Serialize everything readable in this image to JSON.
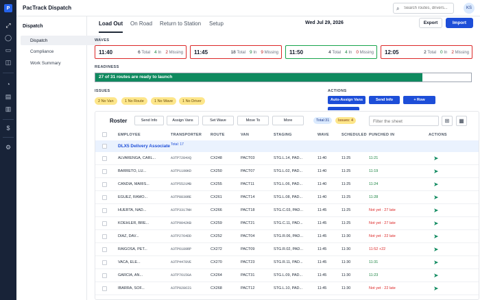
{
  "app": {
    "title": "PacTrack Dispatch"
  },
  "search": {
    "placeholder": "Search routes, drivers..."
  },
  "user": {
    "initials": "KS"
  },
  "rail": {
    "logo": "P",
    "icons": [
      "route-icon",
      "chat-icon",
      "truck-icon",
      "package-icon",
      "gauge-icon",
      "document-icon",
      "clipboard-icon",
      "dollar-icon",
      "settings-icon"
    ]
  },
  "sidebar": {
    "title": "Dispatch",
    "items": [
      {
        "label": "Dispatch"
      },
      {
        "label": "Compliance"
      },
      {
        "label": "Work Summary"
      }
    ]
  },
  "tabs": [
    {
      "label": "Load Out"
    },
    {
      "label": "On Road"
    },
    {
      "label": "Return to Station"
    },
    {
      "label": "Setup"
    }
  ],
  "date": "Wed Jul 29, 2026",
  "actions_top": {
    "export": "Export",
    "import": "Import"
  },
  "waves": {
    "label": "WAVES",
    "items": [
      {
        "time": "11:40",
        "total": "6",
        "in": "4",
        "missing": "2",
        "status": "missing"
      },
      {
        "time": "11:45",
        "total": "18",
        "in": "9",
        "missing": "9",
        "status": "missing"
      },
      {
        "time": "11:50",
        "total": "4",
        "in": "4",
        "missing": "0",
        "status": "ok"
      },
      {
        "time": "12:05",
        "total": "2",
        "in": "0",
        "missing": "2",
        "status": "missing"
      }
    ],
    "total_label": "Total",
    "in_label": "In",
    "missing_label": "Missing"
  },
  "readiness": {
    "label": "READINESS",
    "text": "27 of 31 routes are ready to launch",
    "ready": 27,
    "total": 31
  },
  "issues": {
    "label": "ISSUES",
    "chips": [
      "2 No Van",
      "1 No Route",
      "1 No Wave",
      "1 No Driver"
    ]
  },
  "actions": {
    "label": "ACTIONS",
    "buttons": [
      "Auto-Assign Vans",
      "Send Info",
      "+ Row"
    ]
  },
  "roster": {
    "title": "Roster",
    "buttons": [
      "Send Info",
      "Assign Vans",
      "Set Wave",
      "Move To",
      "More"
    ],
    "total_pill": "Total:31",
    "issues_pill": "Issues: 4",
    "filter_placeholder": "Filter the sheet",
    "columns": [
      "EMPLOYEE",
      "TRANSPORTER",
      "ROUTE",
      "VAN",
      "STAGING",
      "WAVE",
      "SCHEDULED",
      "PUNCHED IN",
      "ACTIONS"
    ],
    "group": {
      "name": "DLX5 Delivery Associate",
      "total": "Total: 17"
    },
    "rows": [
      {
        "employee": "ALVARENGA, CARL...",
        "transporter": "A3TP7284XQ",
        "route": "CX248",
        "van": "PACT03",
        "staging": "STG.L.14, PAD...",
        "wave": "11:40",
        "scheduled": "11:25",
        "punched": "11:21",
        "punch_status": "ok"
      },
      {
        "employee": "BARRETO, LU...",
        "transporter": "A3TP1190KD",
        "route": "CX250",
        "van": "PACT07",
        "staging": "STG.L.02, PAD...",
        "wave": "11:40",
        "scheduled": "11:25",
        "punched": "11:19",
        "punch_status": "ok"
      },
      {
        "employee": "CANDIA, MARIS...",
        "transporter": "A3TP5521MB",
        "route": "CX255",
        "van": "PACT11",
        "staging": "STG.L.06, PAD...",
        "wave": "11:40",
        "scheduled": "11:25",
        "punched": "11:24",
        "punch_status": "ok"
      },
      {
        "employee": "EGUEZ, RAMO...",
        "transporter": "A3TP8830RE",
        "route": "CX261",
        "van": "PACT14",
        "staging": "STG.L.08, PAD...",
        "wave": "11:40",
        "scheduled": "11:25",
        "punched": "11:28",
        "punch_status": "ok"
      },
      {
        "employee": "HUERTA, NAD...",
        "transporter": "A3TP3317NH",
        "route": "CX266",
        "van": "PACT18",
        "staging": "STG.C.03, PAD...",
        "wave": "11:45",
        "scheduled": "11:25",
        "punched": "Not yet · 27 late",
        "punch_status": "late"
      },
      {
        "employee": "KOEHLER, BRE...",
        "transporter": "A3TP9042KB",
        "route": "CX259",
        "van": "PACT21",
        "staging": "STG.C.11, PAD...",
        "wave": "11:45",
        "scheduled": "11:25",
        "punched": "Not yet · 27 late",
        "punch_status": "late"
      },
      {
        "employee": "DIAZ, DAV...",
        "transporter": "A3TP2764DD",
        "route": "CX252",
        "van": "PACT04",
        "staging": "STG.R.06, PAD...",
        "wave": "11:45",
        "scheduled": "11:30",
        "punched": "Not yet · 22 late",
        "punch_status": "late"
      },
      {
        "employee": "RAIGOSA, PET...",
        "transporter": "A3TP6189RP",
        "route": "CX272",
        "van": "PACT09",
        "staging": "STG.R.02, PAD...",
        "wave": "11:45",
        "scheduled": "11:30",
        "punched": "11:52 +22",
        "punch_status": "late"
      },
      {
        "employee": "VACA, ELE...",
        "transporter": "A3TP4478VE",
        "route": "CX270",
        "van": "PACT23",
        "staging": "STG.R.11, PAD...",
        "wave": "11:45",
        "scheduled": "11:30",
        "punched": "11:31",
        "punch_status": "ok"
      },
      {
        "employee": "GARCIA, AN...",
        "transporter": "A3TP7615GA",
        "route": "CX264",
        "van": "PACT31",
        "staging": "STG.L.09, PAD...",
        "wave": "11:45",
        "scheduled": "11:30",
        "punched": "11:23",
        "punch_status": "ok"
      },
      {
        "employee": "IBARRA, SOF...",
        "transporter": "A3TP0286IS",
        "route": "CX268",
        "van": "PACT12",
        "staging": "STG.L.10, PAD...",
        "wave": "11:45",
        "scheduled": "11:30",
        "punched": "Not yet · 22 late",
        "punch_status": "late"
      }
    ]
  }
}
